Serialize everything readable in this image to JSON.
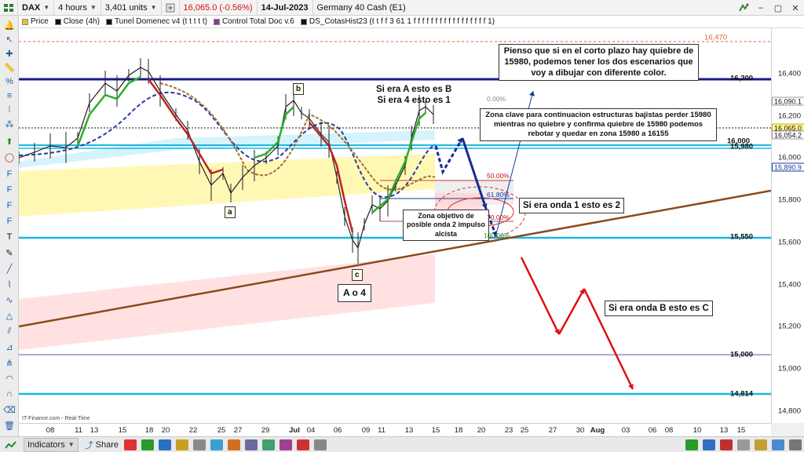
{
  "toolbar": {
    "symbol": "DAX",
    "timeframe": "4 hours",
    "units": "3,401 units",
    "quote": "16,065.0 (-0.56%)",
    "date": "14-Jul-2023",
    "instrument": "Germany 40 Cash (E1)"
  },
  "legend": {
    "items": [
      {
        "label": "Price",
        "color": "#f0c030"
      },
      {
        "label": "Close (4h)",
        "color": "#111111"
      },
      {
        "label": "Tunel Domenec v4 (t t t t t)",
        "color": "#111111"
      },
      {
        "label": "Control Total Doc v.6",
        "color": "#8a3a9a"
      },
      {
        "label": "DS_CotasHist23 (t t f f 3 61 1 f f f f f f f f f f f f f f f f f 1)",
        "color": "#111111"
      }
    ]
  },
  "price_axis": {
    "ticks": [
      "16,400",
      "16,200",
      "16,000",
      "15,800",
      "15,600",
      "15,400",
      "15,200",
      "15,000",
      "14,800"
    ],
    "markers": [
      {
        "label": "16,090.1",
        "kind": "plain"
      },
      {
        "label": "16,065.0",
        "kind": "current"
      },
      {
        "label": "16,054.2",
        "kind": "plain"
      },
      {
        "label": "15,890.9",
        "kind": "blue"
      }
    ]
  },
  "date_axis": {
    "ticks": [
      "08",
      "11",
      "13",
      "15",
      "18",
      "20",
      "22",
      "25",
      "27",
      "29",
      "Jul",
      "04",
      "06",
      "09",
      "11",
      "13",
      "15",
      "18",
      "20",
      "23",
      "25",
      "27",
      "30",
      "Aug",
      "03",
      "06",
      "08",
      "10",
      "13",
      "15"
    ]
  },
  "levels": [
    {
      "label": "16,470",
      "style": "dashed"
    },
    {
      "label": "16,200",
      "style": "navy"
    },
    {
      "label": "16,000",
      "style": "cyan"
    },
    {
      "label": "15,980",
      "style": "cyan"
    },
    {
      "label": "15,550",
      "style": "cyan"
    },
    {
      "label": "15,000",
      "style": "thin"
    },
    {
      "label": "14,814",
      "style": "cyan"
    }
  ],
  "fibonacci": [
    {
      "label": "0.00%"
    },
    {
      "label": "50.00%"
    },
    {
      "label": "61.80%"
    },
    {
      "label": "70.00%"
    },
    {
      "label": "100.00%"
    }
  ],
  "wave_labels": {
    "a": "a",
    "b": "b",
    "c": "c",
    "a_o_4": "A  o  4"
  },
  "annotations": {
    "scenario_ab": "Si era A esto es B\nSi era 4 esto es 1",
    "intro": "Pienso que si en el corto plazo hay quiebre de 15980, podemos tener los dos escenarios que voy a dibujar con diferente color.",
    "key_zone": "Zona clave para continuacion estructuras bajistas perder 15980 mientras no quiebre y confirma quiebre de 15980 podemos rebotar y quedar en zona 15980 a 16155",
    "target_zone": "Zona objetivo de posible onda 2 impulso alcista",
    "wave1": "Si era onda 1 esto es 2",
    "waveB": "Si era onda B esto es C"
  },
  "footer": {
    "credit": "IT-Finance.com - Real-Time",
    "indicators_label": "Indicators",
    "share_label": "Share"
  },
  "colors": {
    "navy_level": "#1a1a8c",
    "cyan_level": "#1ab8e0",
    "trendline": "#8a4a1a",
    "arrow_blue": "#1a3aa0",
    "arrow_red": "#e01010",
    "arrow_navy": "#1a2a90"
  }
}
